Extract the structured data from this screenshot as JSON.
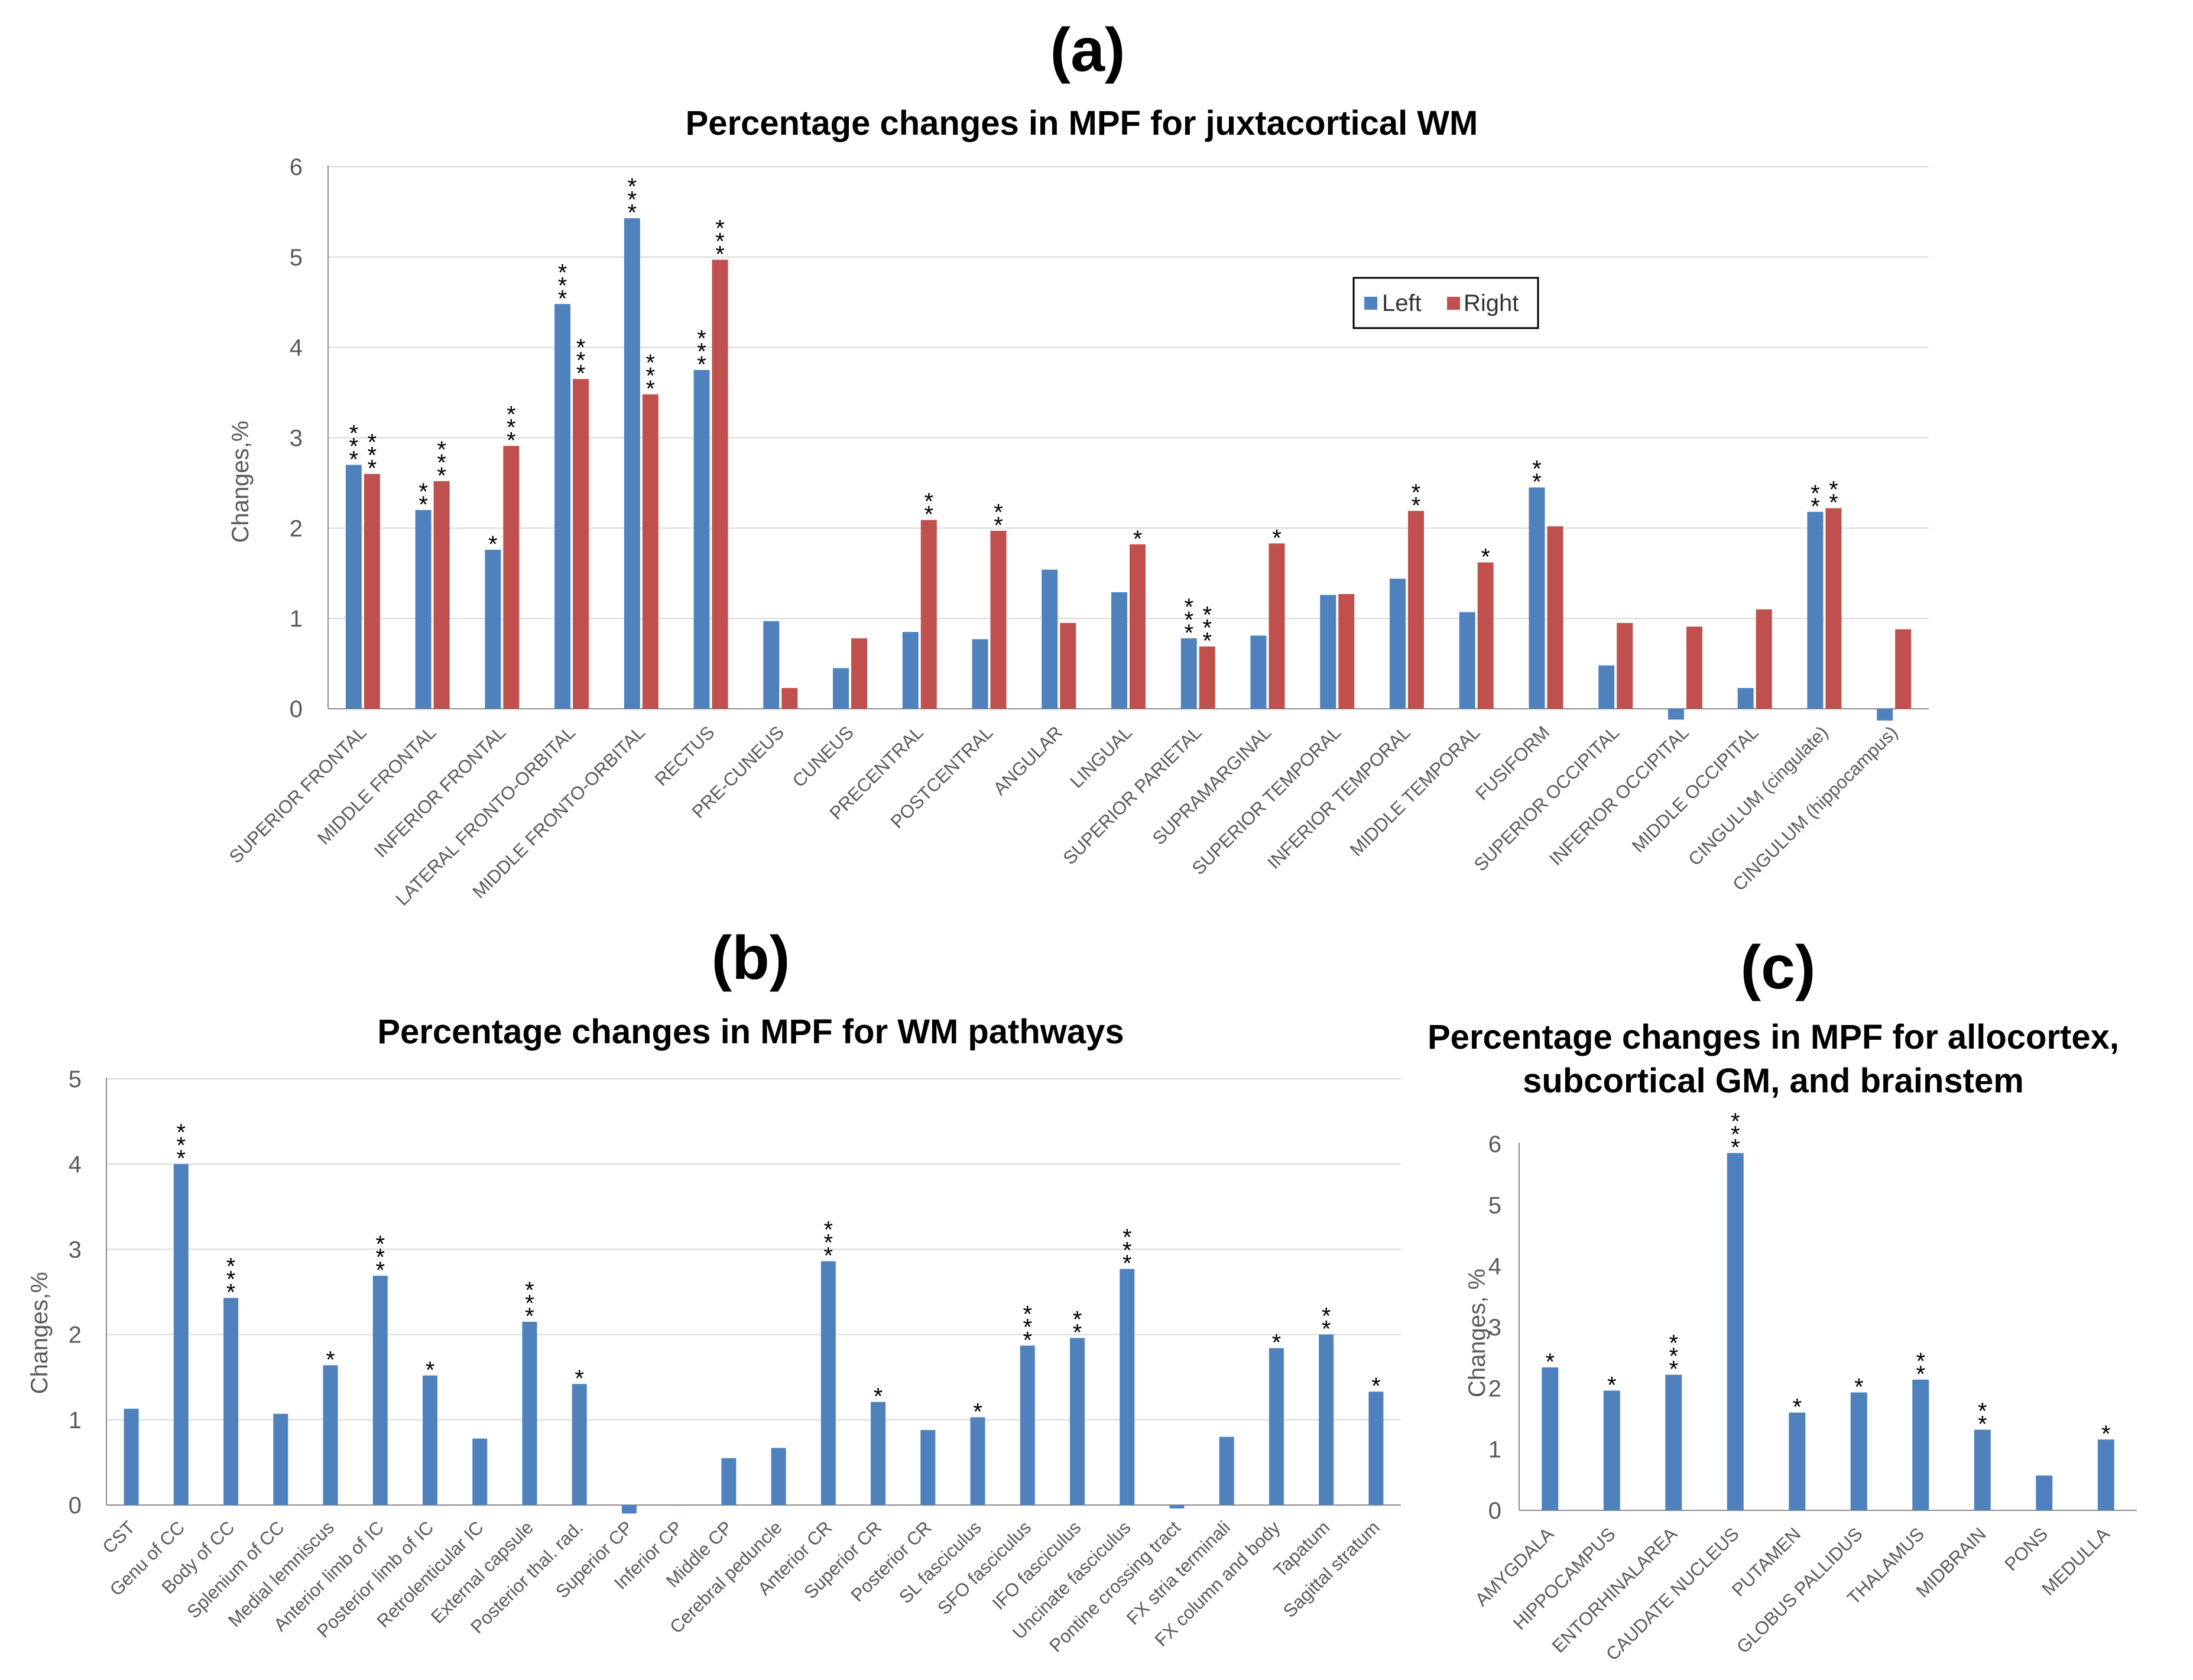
{
  "chart_data": [
    {
      "panel": "(a)",
      "type": "bar",
      "title": "Percentage changes in MPF for juxtacortical WM",
      "xlabel": "",
      "ylabel": "Changes,%",
      "ylim": [
        0,
        6
      ],
      "yticks": [
        "0",
        "1",
        "2",
        "3",
        "4",
        "5",
        "6"
      ],
      "grid": true,
      "legend_position": "top-right",
      "categories": [
        "SUPERIOR FRONTAL",
        "MIDDLE FRONTAL",
        "INFERIOR FRONTAL",
        "LATERAL FRONTO-ORBITAL",
        "MIDDLE FRONTO-ORBITAL",
        "RECTUS",
        "PRE-CUNEUS",
        "CUNEUS",
        "PRECENTRAL",
        "POSTCENTRAL",
        "ANGULAR",
        "LINGUAL",
        "SUPERIOR PARIETAL",
        "SUPRAMARGINAL",
        "SUPERIOR TEMPORAL",
        "INFERIOR TEMPORAL",
        "MIDDLE TEMPORAL",
        "FUSIFORM",
        "SUPERIOR OCCIPITAL",
        "INFERIOR OCCIPITAL",
        "MIDDLE OCCIPITAL",
        "CINGULUM (cingulate)",
        "CINGULUM (hippocampus)"
      ],
      "series": [
        {
          "name": "Left",
          "color": "#4f81bd",
          "values": [
            2.7,
            2.2,
            1.76,
            4.48,
            5.43,
            3.75,
            0.97,
            0.45,
            0.85,
            0.77,
            1.54,
            1.29,
            0.78,
            0.81,
            1.26,
            1.44,
            1.07,
            2.45,
            0.48,
            -0.12,
            0.23,
            2.18,
            -0.13
          ],
          "significance": [
            "***",
            "**",
            "*",
            "***",
            "***",
            "***",
            "",
            "",
            "",
            "",
            "",
            "",
            "***",
            "",
            "",
            "",
            "",
            "**",
            "",
            "",
            "",
            "**",
            ""
          ]
        },
        {
          "name": "Right",
          "color": "#c0504d",
          "values": [
            2.6,
            2.52,
            2.91,
            3.65,
            3.48,
            4.97,
            0.23,
            0.78,
            2.09,
            1.97,
            0.95,
            1.82,
            0.69,
            1.83,
            1.27,
            2.19,
            1.62,
            2.02,
            0.95,
            0.91,
            1.1,
            2.22,
            0.88
          ],
          "significance": [
            "***",
            "***",
            "***",
            "***",
            "***",
            "***",
            "",
            "",
            "**",
            "**",
            "",
            "*",
            "***",
            "*",
            "",
            "**",
            "*",
            "",
            "",
            "",
            "",
            "**",
            ""
          ]
        }
      ]
    },
    {
      "panel": "(b)",
      "type": "bar",
      "title": "Percentage changes in MPF for WM pathways",
      "xlabel": "",
      "ylabel": "Changes,%",
      "ylim": [
        0,
        5
      ],
      "yticks": [
        "0",
        "1",
        "2",
        "3",
        "4",
        "5"
      ],
      "grid": true,
      "categories": [
        "CST",
        "Genu of CC",
        "Body of CC",
        "Splenium of CC",
        "Medial lemniscus",
        "Anterior limb of IC",
        "Posterior limb of IC",
        "Retrolenticular IC",
        "External capsule",
        "Posterior thal. rad.",
        "Superior CP",
        "Inferior CP",
        "Middle CP",
        "Cerebral peduncle",
        "Anterior CR",
        "Superior CR",
        "Posterior CR",
        "SL fasciculus",
        "SFO fasciculus",
        "IFO fasciculus",
        "Uncinate fasciculus",
        "Pontine crossing tract",
        "FX stria terminali",
        "FX column and body",
        "Tapatum",
        "Sagittal stratum"
      ],
      "series": [
        {
          "name": "Change",
          "color": "#4f81bd",
          "values": [
            1.13,
            4.0,
            2.43,
            1.07,
            1.64,
            2.69,
            1.52,
            0.78,
            2.15,
            1.42,
            -0.1,
            0.0,
            0.55,
            0.67,
            2.86,
            1.21,
            0.88,
            1.03,
            1.87,
            1.96,
            2.77,
            -0.04,
            0.8,
            1.84,
            2.0,
            1.33
          ],
          "significance": [
            "",
            "***",
            "***",
            "",
            "*",
            "***",
            "*",
            "",
            "***",
            "*",
            "",
            "",
            "",
            "",
            "***",
            "*",
            "",
            "*",
            "***",
            "**",
            "***",
            "",
            "",
            "*",
            "**",
            "*"
          ]
        }
      ]
    },
    {
      "panel": "(c)",
      "type": "bar",
      "title_line1": "Percentage changes in MPF for allocortex,",
      "title_line2": "subcortical GM, and brainstem",
      "xlabel": "",
      "ylabel": "Changes, %",
      "ylim": [
        0,
        6
      ],
      "yticks": [
        "0",
        "1",
        "2",
        "3",
        "4",
        "5",
        "6"
      ],
      "grid": false,
      "categories": [
        "AMYGDALA",
        "HIPPOCAMPUS",
        "ENTORHINALAREA",
        "CAUDATE NUCLEUS",
        "PUTAMEN",
        "GLOBUS PALLIDUS",
        "THALAMUS",
        "MIDBRAIN",
        "PONS",
        "MEDULLA"
      ],
      "series": [
        {
          "name": "Change",
          "color": "#4f81bd",
          "values": [
            2.34,
            1.96,
            2.22,
            5.85,
            1.6,
            1.93,
            2.14,
            1.32,
            0.57,
            1.16
          ],
          "significance": [
            "*",
            "*",
            "***",
            "***",
            "*",
            "*",
            "**",
            "**",
            "",
            "*"
          ]
        }
      ]
    }
  ]
}
